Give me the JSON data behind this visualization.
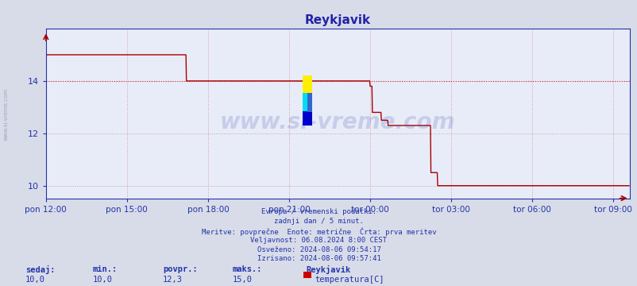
{
  "title": "Reykjavik",
  "title_color": "#2222aa",
  "bg_color": "#d8dce8",
  "plot_bg_color": "#e8ecf8",
  "line_color": "#aa0000",
  "dotted_line_color": "#cc3333",
  "axis_color": "#2233aa",
  "grid_color": "#cc8888",
  "text_color": "#2233aa",
  "ylabel_ticks": [
    10,
    12,
    14
  ],
  "ylim": [
    9.5,
    16.0
  ],
  "xlim_start": 0,
  "xlim_end": 1296,
  "x_tick_positions": [
    0,
    180,
    360,
    540,
    720,
    900,
    1080,
    1260
  ],
  "x_tick_labels": [
    "pon 12:00",
    "pon 15:00",
    "pon 18:00",
    "pon 21:00",
    "tor 00:00",
    "tor 03:00",
    "tor 06:00",
    "tor 09:00"
  ],
  "watermark": "www.si-vreme.com",
  "footer_lines": [
    "Evropa / vremenski podatki.",
    "zadnji dan / 5 minut.",
    "Meritve: povprečne  Enote: metrične  Črta: prva meritev",
    "Veljavnost: 06.08.2024 8:00 CEST",
    "Osveženo: 2024-08-06 09:54:17",
    "Izrisano: 2024-08-06 09:57:41"
  ],
  "stats_labels": [
    "sedaj:",
    "min.:",
    "povpr.:",
    "maks.:"
  ],
  "stats_values": [
    "10,0",
    "10,0",
    "12,3",
    "15,0"
  ],
  "legend_station": "Reykjavik",
  "legend_series": "temperatura[C]",
  "legend_color": "#cc0000",
  "avg_line_y": 14.0,
  "side_text": "www.si-vreme.com"
}
